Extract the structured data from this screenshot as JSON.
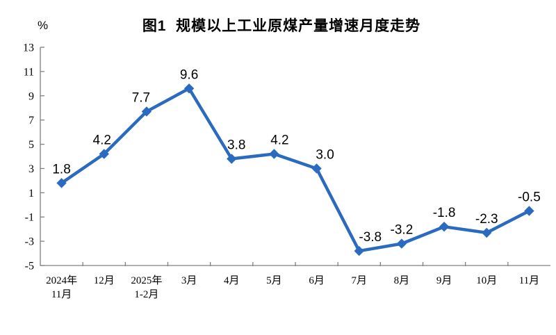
{
  "page": {
    "background": "#ffffff"
  },
  "chart": {
    "title": "图1  规模以上工业原煤产量增速月度走势",
    "unit_label": "%"
  },
  "chart_data": {
    "type": "line",
    "title": "图1  规模以上工业原煤产量增速月度走势",
    "unit": "%",
    "categories": [
      "2024年\n11月",
      "12月",
      "2025年\n1-2月",
      "3月",
      "4月",
      "5月",
      "6月",
      "7月",
      "8月",
      "9月",
      "10月",
      "11月"
    ],
    "values": [
      1.8,
      4.2,
      7.7,
      9.6,
      3.8,
      4.2,
      3.0,
      -3.8,
      -3.2,
      -1.8,
      -2.3,
      -0.5
    ],
    "labels": [
      "1.8",
      "4.2",
      "7.7",
      "9.6",
      "3.8",
      "4.2",
      "3.0",
      "-3.8",
      "-3.2",
      "-1.8",
      "-2.3",
      "-0.5"
    ],
    "yticks": [
      13,
      11,
      9,
      7,
      5,
      3,
      1,
      -1,
      -3,
      -5
    ],
    "ylim": [
      -5,
      13
    ],
    "xlabel": "",
    "ylabel": "%",
    "grid": false,
    "legend": "none",
    "marker": "diamond",
    "line_color": "#2a6bc0",
    "axis_color": "#808080",
    "label_color": "#000000"
  }
}
